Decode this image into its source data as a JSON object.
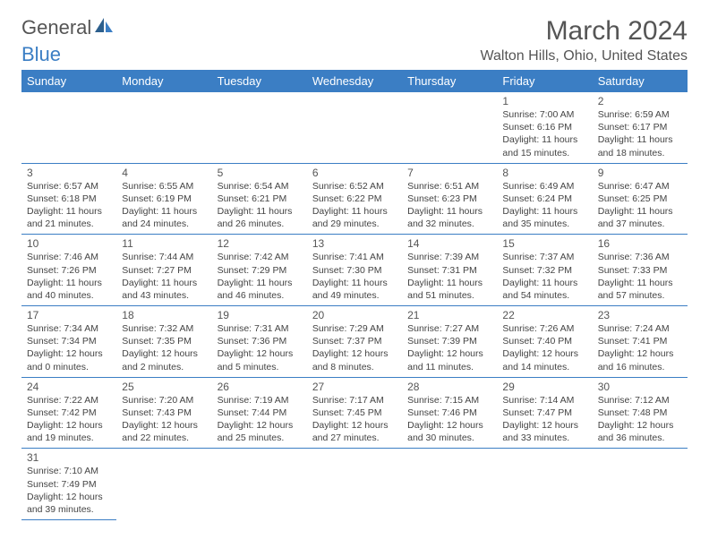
{
  "logo": {
    "general": "General",
    "blue": "Blue"
  },
  "title": {
    "month": "March 2024",
    "location": "Walton Hills, Ohio, United States"
  },
  "colors": {
    "headerBg": "#3b7ec4",
    "headerText": "#ffffff",
    "borderColor": "#3b7ec4",
    "textColor": "#444444",
    "titleColor": "#555555"
  },
  "weekdays": [
    "Sunday",
    "Monday",
    "Tuesday",
    "Wednesday",
    "Thursday",
    "Friday",
    "Saturday"
  ],
  "grid": [
    [
      null,
      null,
      null,
      null,
      null,
      {
        "day": "1",
        "sunrise": "Sunrise: 7:00 AM",
        "sunset": "Sunset: 6:16 PM",
        "daylight1": "Daylight: 11 hours",
        "daylight2": "and 15 minutes."
      },
      {
        "day": "2",
        "sunrise": "Sunrise: 6:59 AM",
        "sunset": "Sunset: 6:17 PM",
        "daylight1": "Daylight: 11 hours",
        "daylight2": "and 18 minutes."
      }
    ],
    [
      {
        "day": "3",
        "sunrise": "Sunrise: 6:57 AM",
        "sunset": "Sunset: 6:18 PM",
        "daylight1": "Daylight: 11 hours",
        "daylight2": "and 21 minutes."
      },
      {
        "day": "4",
        "sunrise": "Sunrise: 6:55 AM",
        "sunset": "Sunset: 6:19 PM",
        "daylight1": "Daylight: 11 hours",
        "daylight2": "and 24 minutes."
      },
      {
        "day": "5",
        "sunrise": "Sunrise: 6:54 AM",
        "sunset": "Sunset: 6:21 PM",
        "daylight1": "Daylight: 11 hours",
        "daylight2": "and 26 minutes."
      },
      {
        "day": "6",
        "sunrise": "Sunrise: 6:52 AM",
        "sunset": "Sunset: 6:22 PM",
        "daylight1": "Daylight: 11 hours",
        "daylight2": "and 29 minutes."
      },
      {
        "day": "7",
        "sunrise": "Sunrise: 6:51 AM",
        "sunset": "Sunset: 6:23 PM",
        "daylight1": "Daylight: 11 hours",
        "daylight2": "and 32 minutes."
      },
      {
        "day": "8",
        "sunrise": "Sunrise: 6:49 AM",
        "sunset": "Sunset: 6:24 PM",
        "daylight1": "Daylight: 11 hours",
        "daylight2": "and 35 minutes."
      },
      {
        "day": "9",
        "sunrise": "Sunrise: 6:47 AM",
        "sunset": "Sunset: 6:25 PM",
        "daylight1": "Daylight: 11 hours",
        "daylight2": "and 37 minutes."
      }
    ],
    [
      {
        "day": "10",
        "sunrise": "Sunrise: 7:46 AM",
        "sunset": "Sunset: 7:26 PM",
        "daylight1": "Daylight: 11 hours",
        "daylight2": "and 40 minutes."
      },
      {
        "day": "11",
        "sunrise": "Sunrise: 7:44 AM",
        "sunset": "Sunset: 7:27 PM",
        "daylight1": "Daylight: 11 hours",
        "daylight2": "and 43 minutes."
      },
      {
        "day": "12",
        "sunrise": "Sunrise: 7:42 AM",
        "sunset": "Sunset: 7:29 PM",
        "daylight1": "Daylight: 11 hours",
        "daylight2": "and 46 minutes."
      },
      {
        "day": "13",
        "sunrise": "Sunrise: 7:41 AM",
        "sunset": "Sunset: 7:30 PM",
        "daylight1": "Daylight: 11 hours",
        "daylight2": "and 49 minutes."
      },
      {
        "day": "14",
        "sunrise": "Sunrise: 7:39 AM",
        "sunset": "Sunset: 7:31 PM",
        "daylight1": "Daylight: 11 hours",
        "daylight2": "and 51 minutes."
      },
      {
        "day": "15",
        "sunrise": "Sunrise: 7:37 AM",
        "sunset": "Sunset: 7:32 PM",
        "daylight1": "Daylight: 11 hours",
        "daylight2": "and 54 minutes."
      },
      {
        "day": "16",
        "sunrise": "Sunrise: 7:36 AM",
        "sunset": "Sunset: 7:33 PM",
        "daylight1": "Daylight: 11 hours",
        "daylight2": "and 57 minutes."
      }
    ],
    [
      {
        "day": "17",
        "sunrise": "Sunrise: 7:34 AM",
        "sunset": "Sunset: 7:34 PM",
        "daylight1": "Daylight: 12 hours",
        "daylight2": "and 0 minutes."
      },
      {
        "day": "18",
        "sunrise": "Sunrise: 7:32 AM",
        "sunset": "Sunset: 7:35 PM",
        "daylight1": "Daylight: 12 hours",
        "daylight2": "and 2 minutes."
      },
      {
        "day": "19",
        "sunrise": "Sunrise: 7:31 AM",
        "sunset": "Sunset: 7:36 PM",
        "daylight1": "Daylight: 12 hours",
        "daylight2": "and 5 minutes."
      },
      {
        "day": "20",
        "sunrise": "Sunrise: 7:29 AM",
        "sunset": "Sunset: 7:37 PM",
        "daylight1": "Daylight: 12 hours",
        "daylight2": "and 8 minutes."
      },
      {
        "day": "21",
        "sunrise": "Sunrise: 7:27 AM",
        "sunset": "Sunset: 7:39 PM",
        "daylight1": "Daylight: 12 hours",
        "daylight2": "and 11 minutes."
      },
      {
        "day": "22",
        "sunrise": "Sunrise: 7:26 AM",
        "sunset": "Sunset: 7:40 PM",
        "daylight1": "Daylight: 12 hours",
        "daylight2": "and 14 minutes."
      },
      {
        "day": "23",
        "sunrise": "Sunrise: 7:24 AM",
        "sunset": "Sunset: 7:41 PM",
        "daylight1": "Daylight: 12 hours",
        "daylight2": "and 16 minutes."
      }
    ],
    [
      {
        "day": "24",
        "sunrise": "Sunrise: 7:22 AM",
        "sunset": "Sunset: 7:42 PM",
        "daylight1": "Daylight: 12 hours",
        "daylight2": "and 19 minutes."
      },
      {
        "day": "25",
        "sunrise": "Sunrise: 7:20 AM",
        "sunset": "Sunset: 7:43 PM",
        "daylight1": "Daylight: 12 hours",
        "daylight2": "and 22 minutes."
      },
      {
        "day": "26",
        "sunrise": "Sunrise: 7:19 AM",
        "sunset": "Sunset: 7:44 PM",
        "daylight1": "Daylight: 12 hours",
        "daylight2": "and 25 minutes."
      },
      {
        "day": "27",
        "sunrise": "Sunrise: 7:17 AM",
        "sunset": "Sunset: 7:45 PM",
        "daylight1": "Daylight: 12 hours",
        "daylight2": "and 27 minutes."
      },
      {
        "day": "28",
        "sunrise": "Sunrise: 7:15 AM",
        "sunset": "Sunset: 7:46 PM",
        "daylight1": "Daylight: 12 hours",
        "daylight2": "and 30 minutes."
      },
      {
        "day": "29",
        "sunrise": "Sunrise: 7:14 AM",
        "sunset": "Sunset: 7:47 PM",
        "daylight1": "Daylight: 12 hours",
        "daylight2": "and 33 minutes."
      },
      {
        "day": "30",
        "sunrise": "Sunrise: 7:12 AM",
        "sunset": "Sunset: 7:48 PM",
        "daylight1": "Daylight: 12 hours",
        "daylight2": "and 36 minutes."
      }
    ],
    [
      {
        "day": "31",
        "sunrise": "Sunrise: 7:10 AM",
        "sunset": "Sunset: 7:49 PM",
        "daylight1": "Daylight: 12 hours",
        "daylight2": "and 39 minutes."
      },
      null,
      null,
      null,
      null,
      null,
      null
    ]
  ]
}
